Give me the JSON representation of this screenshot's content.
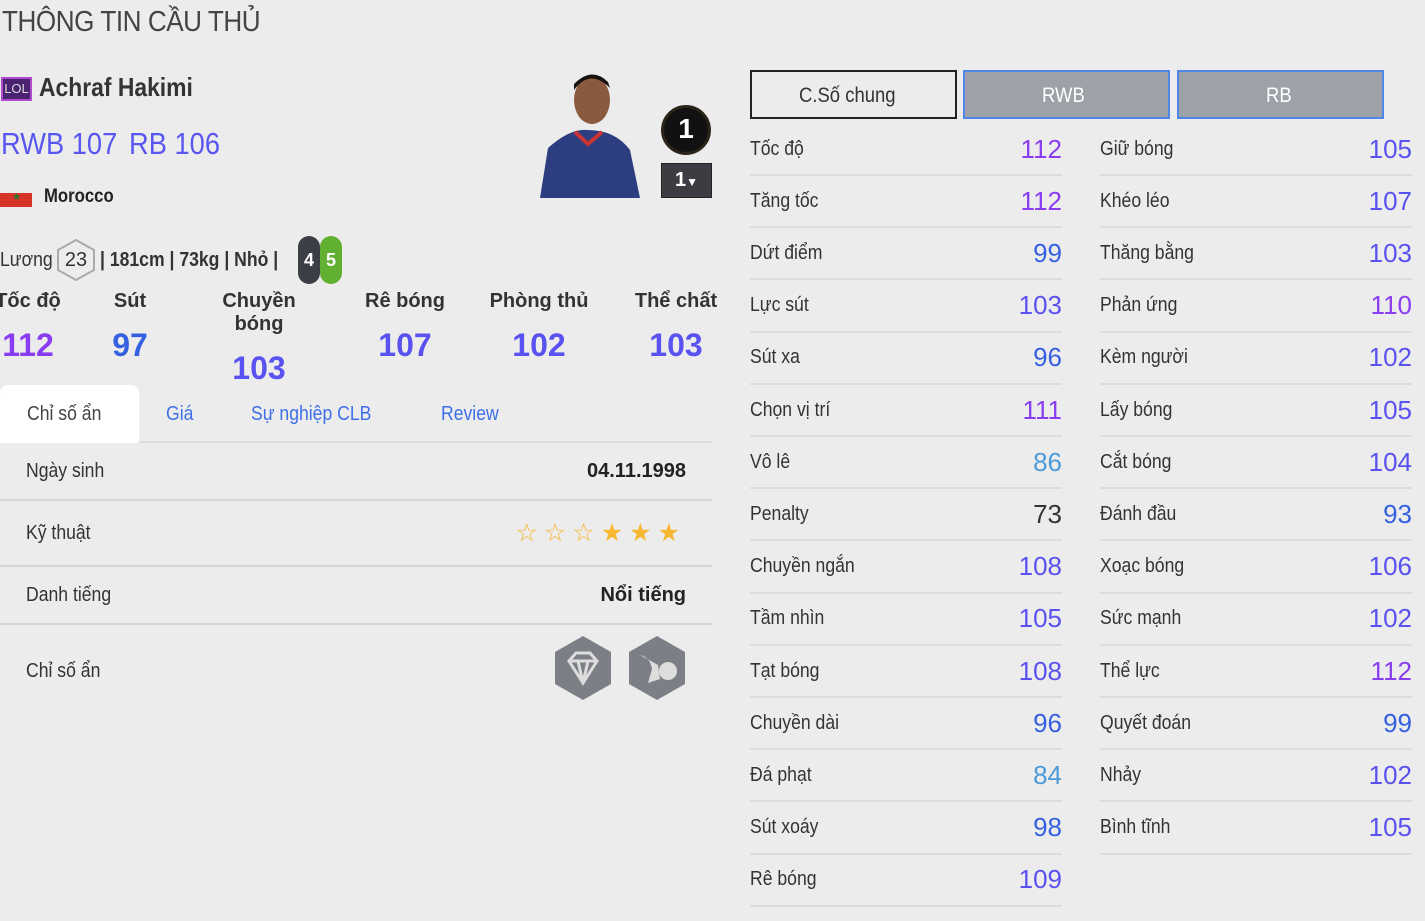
{
  "page_title": "THÔNG TIN CẦU THỦ",
  "player": {
    "season_badge": "LOL",
    "name": "Achraf Hakimi",
    "positions": [
      {
        "label": "RWB 107"
      },
      {
        "label": "RB 106"
      }
    ],
    "nation": "Morocco",
    "salary_label": "Lương",
    "salary": "23",
    "details": "| 181cm | 73kg | Nhỏ |",
    "left_foot": "4",
    "right_foot": "5",
    "team_color_badge": "1",
    "upgrade_level": "1"
  },
  "main_stats": [
    {
      "label": "Tốc độ",
      "value": "112"
    },
    {
      "label": "Sút",
      "value": "97"
    },
    {
      "label": "Chuyền bóng",
      "value": "103"
    },
    {
      "label": "Rê bóng",
      "value": "107"
    },
    {
      "label": "Phòng thủ",
      "value": "102"
    },
    {
      "label": "Thể chất",
      "value": "103"
    }
  ],
  "tabs": [
    {
      "label": "Chỉ số ẩn"
    },
    {
      "label": "Giá"
    },
    {
      "label": "Sự nghiệp CLB"
    },
    {
      "label": "Review"
    }
  ],
  "info": {
    "birth_label": "Ngày sinh",
    "birth": "04.11.1998",
    "skill_label": "Kỹ thuật",
    "skill_stars": 3,
    "skill_max": 6,
    "rep_label": "Danh tiếng",
    "rep": "Nổi tiếng",
    "hidden_label": "Chỉ số ẩn",
    "hidden_icons": [
      "diamond-icon",
      "speed-dribbler-icon"
    ]
  },
  "position_tabs": [
    {
      "label": "C.Số chung"
    },
    {
      "label": "RWB"
    },
    {
      "label": "RB"
    }
  ],
  "stats_left": [
    {
      "label": "Tốc độ",
      "value": 112
    },
    {
      "label": "Tăng tốc",
      "value": 112
    },
    {
      "label": "Dứt điểm",
      "value": 99
    },
    {
      "label": "Lực sút",
      "value": 103
    },
    {
      "label": "Sút xa",
      "value": 96
    },
    {
      "label": "Chọn vị trí",
      "value": 111
    },
    {
      "label": "Vô lê",
      "value": 86
    },
    {
      "label": "Penalty",
      "value": 73
    },
    {
      "label": "Chuyền ngắn",
      "value": 108
    },
    {
      "label": "Tầm nhìn",
      "value": 105
    },
    {
      "label": "Tạt bóng",
      "value": 108
    },
    {
      "label": "Chuyền dài",
      "value": 96
    },
    {
      "label": "Đá phạt",
      "value": 84
    },
    {
      "label": "Sút xoáy",
      "value": 98
    },
    {
      "label": "Rê bóng",
      "value": 109
    }
  ],
  "stats_right": [
    {
      "label": "Giữ bóng",
      "value": 105
    },
    {
      "label": "Khéo léo",
      "value": 107
    },
    {
      "label": "Thăng bằng",
      "value": 103
    },
    {
      "label": "Phản ứng",
      "value": 110
    },
    {
      "label": "Kèm người",
      "value": 102
    },
    {
      "label": "Lấy bóng",
      "value": 105
    },
    {
      "label": "Cắt bóng",
      "value": 104
    },
    {
      "label": "Đánh đầu",
      "value": 93
    },
    {
      "label": "Xoạc bóng",
      "value": 106
    },
    {
      "label": "Sức mạnh",
      "value": 102
    },
    {
      "label": "Thể lực",
      "value": 112
    },
    {
      "label": "Quyết đoán",
      "value": 99
    },
    {
      "label": "Nhảy",
      "value": 102
    },
    {
      "label": "Bình tĩnh",
      "value": 105
    }
  ],
  "colors": {
    "s110": "#8a3cf0",
    "s100": "#5a52f0",
    "s90": "#3560e0",
    "s80": "#4c9ad8",
    "s70": "#333333",
    "foot_left": "#3b3e45",
    "foot_right": "#62b032",
    "star": "#f7b731"
  }
}
